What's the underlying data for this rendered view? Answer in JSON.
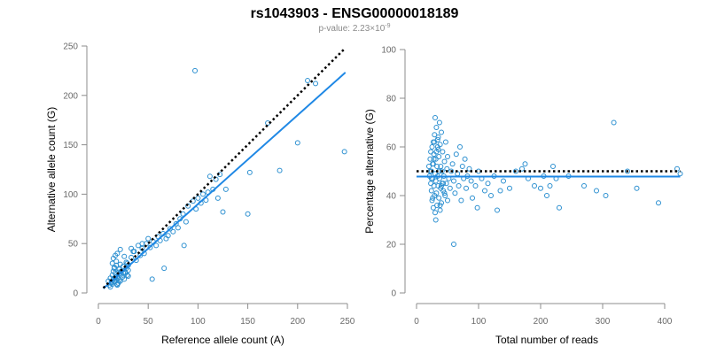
{
  "figure": {
    "title": "rs1043903 - ENSG00000018189",
    "subtitle_prefix": "p-value: 2.23×10",
    "subtitle_exponent": "-9"
  },
  "colors": {
    "point": "#2b8fd0",
    "fit_line": "#1f88e5",
    "reference_line": "#000000",
    "axis": "#8c8c8c"
  },
  "chart_data": [
    {
      "type": "scatter",
      "title": "",
      "xlabel": "Reference allele count (A)",
      "ylabel": "Alternative allele count (G)",
      "xlim": [
        0,
        250
      ],
      "ylim": [
        0,
        250
      ],
      "xticks": [
        0,
        50,
        100,
        150,
        200,
        250
      ],
      "yticks": [
        0,
        50,
        100,
        150,
        200,
        250
      ],
      "fit_line": {
        "slope": 0.9,
        "intercept": 0,
        "x_range": [
          5,
          248
        ]
      },
      "reference_line": {
        "slope": 1.0,
        "intercept": 0,
        "x_range": [
          5,
          248
        ]
      },
      "x": [
        10,
        12,
        13,
        14,
        15,
        15,
        16,
        16,
        17,
        17,
        18,
        18,
        19,
        19,
        20,
        20,
        21,
        21,
        22,
        22,
        23,
        24,
        25,
        26,
        27,
        28,
        29,
        30,
        11,
        13,
        14,
        16,
        18,
        20,
        22,
        25,
        28,
        12,
        14,
        16,
        19,
        21,
        24,
        27,
        30,
        15,
        17,
        19,
        22,
        26,
        29,
        33,
        35,
        38,
        40,
        42,
        44,
        46,
        48,
        50,
        52,
        55,
        58,
        60,
        62,
        65,
        68,
        70,
        72,
        75,
        78,
        80,
        82,
        85,
        88,
        90,
        95,
        98,
        100,
        103,
        105,
        108,
        110,
        112,
        115,
        118,
        120,
        122,
        125,
        128,
        150,
        152,
        170,
        182,
        200,
        210,
        218,
        247,
        97,
        30,
        33,
        36,
        44,
        54,
        66,
        86
      ],
      "y": [
        12,
        15,
        10,
        18,
        14,
        22,
        11,
        25,
        16,
        20,
        13,
        28,
        17,
        9,
        21,
        15,
        19,
        24,
        12,
        18,
        22,
        16,
        27,
        14,
        20,
        25,
        18,
        23,
        8,
        11,
        30,
        26,
        32,
        10,
        29,
        20,
        31,
        6,
        9,
        12,
        8,
        13,
        16,
        21,
        17,
        35,
        38,
        40,
        44,
        37,
        30,
        36,
        42,
        33,
        48,
        38,
        45,
        40,
        50,
        55,
        46,
        52,
        48,
        57,
        53,
        60,
        55,
        58,
        65,
        62,
        70,
        66,
        75,
        80,
        72,
        88,
        93,
        85,
        96,
        91,
        100,
        94,
        102,
        118,
        105,
        115,
        96,
        120,
        82,
        105,
        80,
        122,
        172,
        124,
        152,
        215,
        212,
        143,
        225,
        28,
        45,
        42,
        50,
        14,
        25,
        48
      ]
    },
    {
      "type": "scatter",
      "title": "",
      "xlabel": "Total number of reads",
      "ylabel": "Percentage alternative (G)",
      "xlim": [
        0,
        420
      ],
      "ylim": [
        0,
        100
      ],
      "xticks": [
        0,
        100,
        200,
        300,
        400
      ],
      "yticks": [
        0,
        20,
        40,
        60,
        80,
        100
      ],
      "fit_line": {
        "y": 47.8,
        "x_range": [
          0,
          425
        ]
      },
      "reference_line": {
        "y": 50,
        "x_range": [
          0,
          425
        ]
      },
      "x": [
        20,
        21,
        22,
        23,
        23,
        24,
        24,
        25,
        25,
        26,
        26,
        27,
        27,
        28,
        28,
        29,
        29,
        30,
        30,
        31,
        31,
        32,
        32,
        33,
        33,
        34,
        34,
        35,
        35,
        36,
        36,
        37,
        37,
        38,
        38,
        39,
        39,
        40,
        40,
        41,
        41,
        42,
        43,
        44,
        45,
        46,
        47,
        48,
        49,
        50,
        50,
        52,
        54,
        56,
        58,
        60,
        62,
        64,
        66,
        68,
        70,
        72,
        74,
        76,
        78,
        80,
        82,
        85,
        88,
        90,
        95,
        98,
        100,
        105,
        110,
        115,
        120,
        125,
        130,
        135,
        140,
        150,
        160,
        170,
        175,
        180,
        190,
        200,
        205,
        210,
        215,
        220,
        225,
        230,
        245,
        270,
        290,
        305,
        318,
        340,
        355,
        390,
        420,
        425,
        60,
        22,
        28,
        34,
        40,
        26,
        30,
        35,
        24,
        27,
        32,
        38,
        45,
        31,
        29,
        36,
        43
      ],
      "y": [
        52,
        48,
        55,
        45,
        58,
        42,
        50,
        38,
        60,
        47,
        53,
        35,
        62,
        44,
        57,
        40,
        65,
        49,
        33,
        55,
        46,
        68,
        41,
        52,
        36,
        63,
        48,
        44,
        59,
        39,
        56,
        70,
        47,
        34,
        61,
        43,
        52,
        37,
        66,
        45,
        50,
        58,
        42,
        48,
        54,
        40,
        62,
        45,
        51,
        38,
        56,
        47,
        43,
        50,
        53,
        46,
        41,
        57,
        49,
        44,
        60,
        38,
        52,
        47,
        55,
        43,
        48,
        51,
        46,
        39,
        44,
        35,
        50,
        47,
        42,
        45,
        40,
        48,
        34,
        42,
        46,
        43,
        50,
        51,
        53,
        47,
        44,
        43,
        48,
        40,
        44,
        52,
        47,
        35,
        48,
        44,
        42,
        40,
        70,
        50,
        43,
        37,
        51,
        49,
        20,
        50,
        55,
        60,
        44,
        39,
        72,
        64,
        47,
        53,
        58,
        36,
        41,
        30,
        62,
        50,
        45
      ]
    }
  ]
}
